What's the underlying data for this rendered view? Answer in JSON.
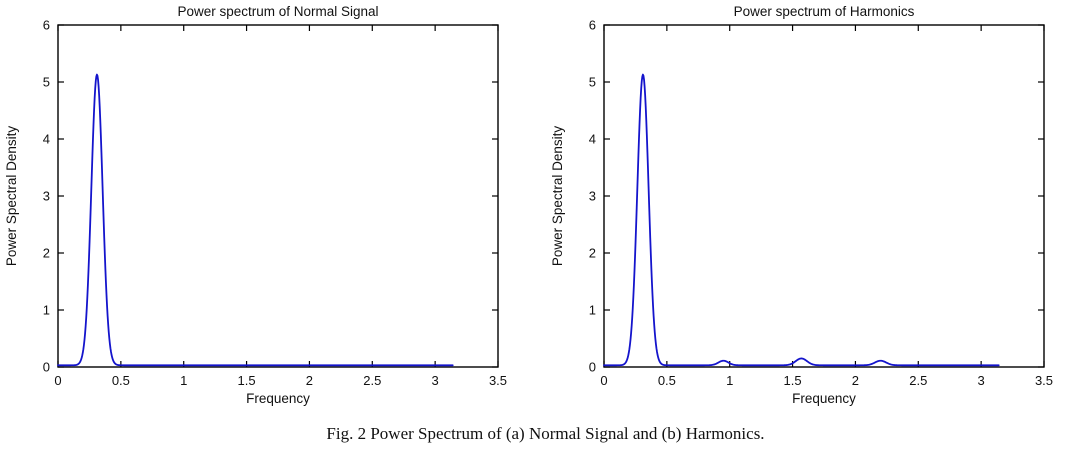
{
  "caption": {
    "text": "Fig. 2 Power Spectrum of (a) Normal Signal and (b) Harmonics."
  },
  "style": {
    "line_color": "#1414cc",
    "axis_color": "#000000",
    "text_color": "#111111",
    "background": "#ffffff"
  },
  "chart_data": [
    {
      "type": "line",
      "title": "Power spectrum of Normal Signal",
      "xlabel": "Frequency",
      "ylabel": "Power Spectral Density",
      "xlim": [
        0,
        3.5
      ],
      "ylim": [
        0,
        6
      ],
      "xticks": [
        0,
        0.5,
        1,
        1.5,
        2,
        2.5,
        3,
        3.5
      ],
      "yticks": [
        0,
        1,
        2,
        3,
        4,
        5,
        6
      ],
      "grid": false,
      "legend": null,
      "line_color": "#1414cc",
      "data_x_range": [
        0,
        3.14
      ],
      "baseline": 0.03,
      "peaks": [
        {
          "center": 0.31,
          "height": 5.1,
          "sigma": 0.045
        }
      ]
    },
    {
      "type": "line",
      "title": "Power spectrum of Harmonics",
      "xlabel": "Frequency",
      "ylabel": "Power Spectral Density",
      "xlim": [
        0,
        3.5
      ],
      "ylim": [
        0,
        6
      ],
      "xticks": [
        0,
        0.5,
        1,
        1.5,
        2,
        2.5,
        3,
        3.5
      ],
      "yticks": [
        0,
        1,
        2,
        3,
        4,
        5,
        6
      ],
      "grid": false,
      "legend": null,
      "line_color": "#1414cc",
      "data_x_range": [
        0,
        3.14
      ],
      "baseline": 0.03,
      "peaks": [
        {
          "center": 0.31,
          "height": 5.1,
          "sigma": 0.045
        },
        {
          "center": 0.95,
          "height": 0.08,
          "sigma": 0.04
        },
        {
          "center": 1.57,
          "height": 0.12,
          "sigma": 0.045
        },
        {
          "center": 2.2,
          "height": 0.08,
          "sigma": 0.045
        }
      ]
    }
  ]
}
